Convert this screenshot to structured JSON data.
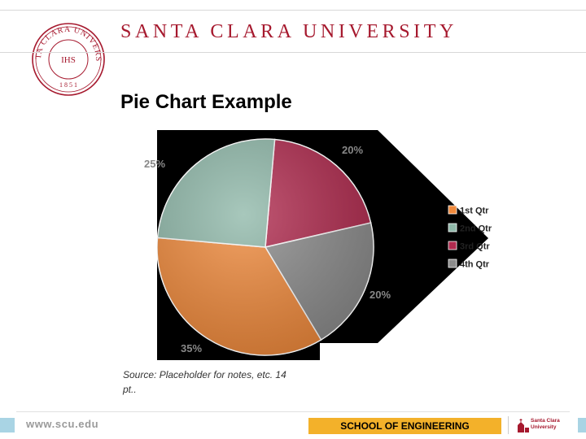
{
  "header": {
    "university_name": "SANTA CLARA UNIVERSITY",
    "seal": {
      "ring_text": "SANTA CLARA UNIVERSITY",
      "monogram": "IHS",
      "year": "1 8 5 1"
    }
  },
  "slide": {
    "title": "Pie Chart Example",
    "source_note": "Source: Placeholder for notes, etc. 14 pt.."
  },
  "chart_data": {
    "type": "pie",
    "series": [
      {
        "name": "1st Qtr",
        "value": 35,
        "label": "35%",
        "color": "#f08a3c"
      },
      {
        "name": "2nd Qtr",
        "value": 25,
        "label": "25%",
        "color": "#8fb8a9"
      },
      {
        "name": "3rd Qtr",
        "value": 20,
        "label": "20%",
        "color": "#b02a4e"
      },
      {
        "name": "4th Qtr",
        "value": 20,
        "label": "20%",
        "color": "#8c8c8c"
      }
    ],
    "legend_position": "right"
  },
  "footer": {
    "url": "www.scu.edu",
    "school": "SCHOOL OF ENGINEERING",
    "logo_text_1": "Santa Clara",
    "logo_text_2": "University"
  },
  "colors": {
    "brand_red": "#a6192e",
    "footer_gold": "#f3b12a",
    "footer_blue": "#a9d4e4"
  }
}
